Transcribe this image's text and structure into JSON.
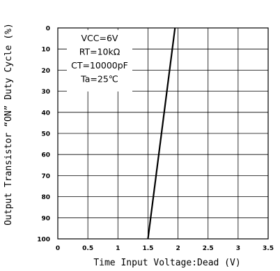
{
  "chart_data": {
    "type": "line",
    "xlabel": "Time Input Voltage:Dead (V)",
    "ylabel": "Output Transistor “ON” Duty Cycle (%)",
    "xlim": [
      0,
      3.5
    ],
    "ylim": [
      0,
      100
    ],
    "y_inverted": true,
    "x_ticks": [
      0,
      0.5,
      1,
      1.5,
      2,
      2.5,
      3,
      3.5
    ],
    "x_tick_labels": [
      "0",
      "0.5",
      "1",
      "1.5",
      "2",
      "2.5",
      "3",
      "3.5"
    ],
    "y_ticks": [
      0,
      10,
      20,
      30,
      40,
      50,
      60,
      70,
      80,
      90,
      100
    ],
    "y_tick_labels": [
      "0",
      "10",
      "20",
      "30",
      "40",
      "50",
      "60",
      "70",
      "80",
      "90",
      "100"
    ],
    "grid": true,
    "conditions": [
      "VCC=6V",
      "RT=10kΩ",
      "CT=10000pF",
      "Ta=25℃"
    ],
    "series": [
      {
        "x": [
          1.95,
          1.5
        ],
        "y": [
          0,
          100
        ]
      }
    ]
  }
}
